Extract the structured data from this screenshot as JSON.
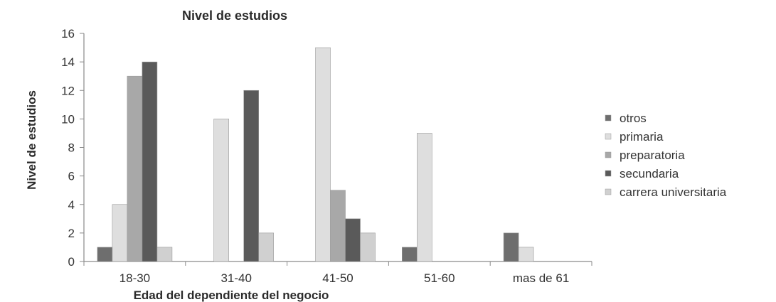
{
  "chart_data": {
    "type": "bar",
    "title": "Nivel de estudios",
    "xlabel": "Edad del dependiente del negocio",
    "ylabel": "Nivel de estudios",
    "categories": [
      "18-30",
      "31-40",
      "41-50",
      "51-60",
      "mas de 61"
    ],
    "ylim": [
      0,
      16
    ],
    "yticks": [
      0,
      2,
      4,
      6,
      8,
      10,
      12,
      14,
      16
    ],
    "grid": false,
    "legend_position": "right",
    "series": [
      {
        "name": "otros",
        "color": "#6e6e6e",
        "values": [
          1,
          0,
          0,
          1,
          2
        ]
      },
      {
        "name": "primaria",
        "color": "#dedede",
        "values": [
          4,
          10,
          15,
          9,
          1
        ]
      },
      {
        "name": "preparatoria",
        "color": "#a8a8a8",
        "values": [
          13,
          0,
          5,
          0,
          0
        ]
      },
      {
        "name": "secundaria",
        "color": "#5a5a5a",
        "values": [
          14,
          12,
          3,
          0,
          0
        ]
      },
      {
        "name": "carrera universitaria",
        "color": "#d0d0d0",
        "values": [
          1,
          2,
          2,
          0,
          0
        ]
      }
    ]
  }
}
